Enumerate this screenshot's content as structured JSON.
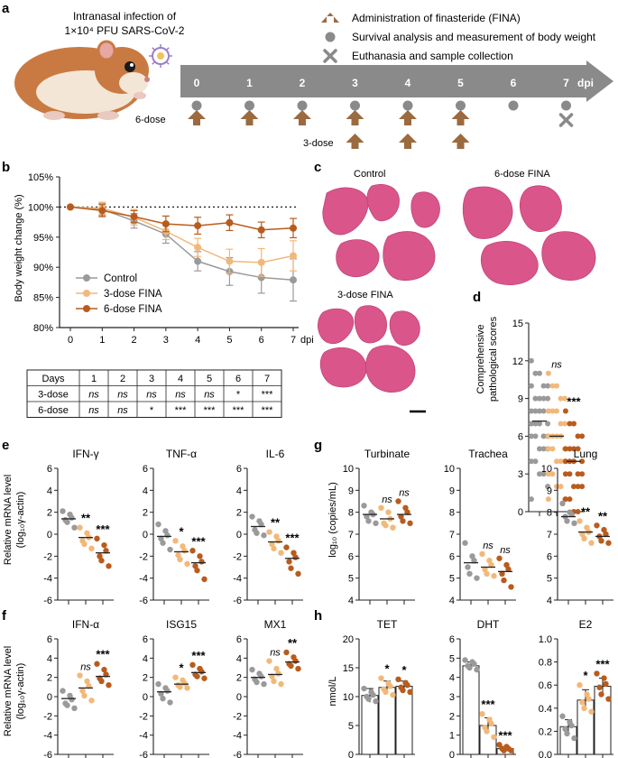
{
  "colors": {
    "control": "#9a9a9a",
    "dose3": "#f2b87a",
    "dose6": "#b85c1e",
    "arrow": "#9b6a3e",
    "timeline": "#8a8a8a",
    "tissue": "#d9558a"
  },
  "panel_a": {
    "letter": "a",
    "infection_line1": "Intranasal infection of",
    "infection_line2": "1×10⁴ PFU SARS-CoV-2",
    "legend": [
      "Administration of finasteride (FINA)",
      "Survival analysis and measurement of body weight",
      "Euthanasia and sample collection"
    ],
    "days": [
      "0",
      "1",
      "2",
      "3",
      "4",
      "5",
      "6",
      "7"
    ],
    "dpi": "dpi",
    "six_dose": "6-dose",
    "three_dose": "3-dose"
  },
  "panel_b": {
    "letter": "b",
    "ylabel": "Body weight change (%)",
    "xunit": "dpi",
    "yticks": [
      "105%",
      "100%",
      "95%",
      "90%",
      "85%",
      "80%"
    ],
    "legend": [
      "Control",
      "3-dose FINA",
      "6-dose FINA"
    ],
    "table": {
      "header": [
        "Days",
        "1",
        "2",
        "3",
        "4",
        "5",
        "6",
        "7"
      ],
      "rows": [
        [
          "3-dose",
          "ns",
          "ns",
          "ns",
          "ns",
          "ns",
          "*",
          "***"
        ],
        [
          "6-dose",
          "ns",
          "ns",
          "*",
          "***",
          "***",
          "***",
          "***"
        ]
      ]
    }
  },
  "panel_c": {
    "letter": "c",
    "labels": [
      "Control",
      "6-dose FINA",
      "3-dose FINA"
    ]
  },
  "panel_d": {
    "letter": "d",
    "ylabel1": "Comprehensive",
    "ylabel2": "pathological scores",
    "sig": [
      "ns",
      "***"
    ]
  },
  "panel_e": {
    "letter": "e",
    "ylabel1": "Relative mRNA level",
    "ylabel2": "(log₁₀γ-actin)"
  },
  "panel_f": {
    "letter": "f",
    "ylabel1": "Relative mRNA level",
    "ylabel2": "(log₁₀γ-actin)"
  },
  "panel_g": {
    "letter": "g",
    "ylabel": "log₁₀ (copies/mL)"
  },
  "panel_h": {
    "letter": "h",
    "ylabel": "nmol/L"
  },
  "chart_data": [
    {
      "id": "b",
      "type": "line",
      "title": "Body weight change",
      "xlabel": "dpi",
      "ylabel": "Body weight change (%)",
      "x": [
        0,
        1,
        2,
        3,
        4,
        5,
        6,
        7
      ],
      "ylim": [
        80,
        105
      ],
      "reference_line": 100,
      "series": [
        {
          "name": "Control",
          "values": [
            100,
            99.6,
            97.7,
            95.5,
            91.0,
            89.3,
            88.3,
            87.9
          ],
          "errors": [
            0,
            1,
            1.2,
            1.5,
            1.6,
            2.3,
            2.6,
            3.5
          ]
        },
        {
          "name": "3-dose FINA",
          "values": [
            100,
            99.8,
            98.3,
            96.0,
            93.3,
            91.0,
            90.8,
            91.9
          ],
          "errors": [
            0,
            1,
            1.3,
            1.4,
            1.5,
            2.0,
            2.3,
            2.5
          ]
        },
        {
          "name": "6-dose FINA",
          "values": [
            100,
            99.4,
            98.4,
            97.2,
            96.9,
            97.4,
            96.2,
            96.5
          ],
          "errors": [
            0,
            1,
            1.0,
            1.3,
            1.4,
            1.3,
            1.3,
            1.6
          ]
        }
      ]
    },
    {
      "id": "d",
      "type": "scatter",
      "ylabel": "Comprehensive pathological scores",
      "ylim": [
        0,
        15
      ],
      "yticks": [
        0,
        3,
        6,
        9,
        12,
        15
      ],
      "groups": [
        {
          "name": "Control",
          "mean": 7.2,
          "values": [
            12,
            11,
            11,
            10,
            10,
            10,
            9,
            9,
            9,
            9,
            8,
            8,
            8,
            8,
            7,
            7,
            7,
            7,
            6,
            6,
            6,
            6,
            5,
            5,
            5,
            4,
            4,
            3,
            3,
            2,
            1
          ]
        },
        {
          "name": "3-dose FINA",
          "mean": 6.0,
          "sig": "ns",
          "values": [
            11,
            10,
            10,
            9,
            9,
            8,
            8,
            8,
            7,
            7,
            6,
            6,
            6,
            6,
            5,
            5,
            5,
            4,
            4,
            4,
            3,
            3,
            2,
            2,
            1,
            1
          ]
        },
        {
          "name": "6-dose FINA",
          "mean": 4.0,
          "sig": "***",
          "values": [
            8,
            7,
            7,
            6,
            6,
            5,
            5,
            5,
            5,
            4,
            4,
            4,
            4,
            3,
            3,
            3,
            3,
            2,
            2,
            2,
            1,
            1,
            0,
            0
          ]
        }
      ]
    },
    {
      "id": "e1",
      "type": "scatter",
      "title": "IFN-γ",
      "ylim": [
        -6,
        6
      ],
      "yticks": [
        -6,
        -4,
        -2,
        0,
        2,
        4,
        6
      ],
      "groups": [
        {
          "name": "Control",
          "mean": 1.4,
          "values": [
            2.1,
            1.8,
            1.5,
            1.3,
            1.1,
            0.6
          ]
        },
        {
          "name": "3-dose FINA",
          "mean": -0.3,
          "sig": "**",
          "values": [
            0.6,
            0.1,
            -0.3,
            -0.6,
            -0.9,
            -1.3
          ]
        },
        {
          "name": "6-dose FINA",
          "mean": -1.7,
          "sig": "***",
          "values": [
            -0.4,
            -1.0,
            -1.5,
            -2.0,
            -2.4,
            -2.9
          ]
        }
      ]
    },
    {
      "id": "e2",
      "type": "scatter",
      "title": "TNF-α",
      "ylim": [
        -6,
        6
      ],
      "yticks": [
        -6,
        -4,
        -2,
        0,
        2,
        4,
        6
      ],
      "groups": [
        {
          "name": "Control",
          "mean": -0.2,
          "values": [
            0.9,
            0.3,
            -0.1,
            -0.4,
            -0.8,
            -1.4
          ]
        },
        {
          "name": "3-dose FINA",
          "mean": -1.6,
          "sig": "*",
          "values": [
            -0.6,
            -1.1,
            -1.5,
            -1.9,
            -2.3,
            -2.7
          ]
        },
        {
          "name": "6-dose FINA",
          "mean": -2.6,
          "sig": "***",
          "values": [
            -1.5,
            -2.0,
            -2.5,
            -2.9,
            -3.3,
            -4.1
          ]
        }
      ]
    },
    {
      "id": "e3",
      "type": "scatter",
      "title": "IL-6",
      "ylim": [
        -6,
        6
      ],
      "yticks": [
        -6,
        -4,
        -2,
        0,
        2,
        4,
        6
      ],
      "groups": [
        {
          "name": "Control",
          "mean": 0.7,
          "values": [
            1.6,
            1.2,
            0.9,
            0.4,
            0.1,
            -0.1
          ]
        },
        {
          "name": "3-dose FINA",
          "mean": -0.7,
          "sig": "**",
          "values": [
            0.2,
            -0.2,
            -0.6,
            -0.9,
            -1.3,
            -1.7
          ]
        },
        {
          "name": "6-dose FINA",
          "mean": -2.2,
          "sig": "***",
          "values": [
            -1.2,
            -1.7,
            -2.1,
            -2.5,
            -3.1,
            -3.6
          ]
        }
      ]
    },
    {
      "id": "f1",
      "type": "scatter",
      "title": "IFN-α",
      "ylim": [
        -6,
        6
      ],
      "yticks": [
        -6,
        -4,
        -2,
        0,
        2,
        4,
        6
      ],
      "groups": [
        {
          "name": "Control",
          "mean": -0.2,
          "values": [
            0.6,
            0.1,
            -0.3,
            -0.7,
            -0.9,
            -1.2
          ]
        },
        {
          "name": "3-dose FINA",
          "mean": 0.9,
          "sig": "ns",
          "values": [
            2.2,
            1.6,
            1.1,
            0.6,
            0.1,
            -0.4
          ]
        },
        {
          "name": "6-dose FINA",
          "mean": 2.1,
          "sig": "***",
          "values": [
            3.4,
            2.8,
            2.3,
            1.9,
            1.6,
            1.2
          ]
        }
      ]
    },
    {
      "id": "f2",
      "type": "scatter",
      "title": "ISG15",
      "ylim": [
        -6,
        6
      ],
      "yticks": [
        -6,
        -4,
        -2,
        0,
        2,
        4,
        6
      ],
      "groups": [
        {
          "name": "Control",
          "mean": 0.5,
          "values": [
            1.3,
            0.9,
            0.6,
            0.3,
            -0.2,
            -0.6
          ]
        },
        {
          "name": "3-dose FINA",
          "mean": 1.3,
          "sig": "*",
          "values": [
            2.0,
            1.7,
            1.4,
            1.2,
            1.0,
            0.9
          ]
        },
        {
          "name": "6-dose FINA",
          "mean": 2.5,
          "sig": "***",
          "values": [
            3.3,
            2.9,
            2.6,
            2.3,
            2.1,
            1.9
          ]
        }
      ]
    },
    {
      "id": "f3",
      "type": "scatter",
      "title": "MX1",
      "ylim": [
        -6,
        6
      ],
      "yticks": [
        -6,
        -4,
        -2,
        0,
        2,
        4,
        6
      ],
      "groups": [
        {
          "name": "Control",
          "mean": 2.0,
          "values": [
            2.8,
            2.4,
            2.1,
            1.8,
            1.5,
            1.3
          ]
        },
        {
          "name": "3-dose FINA",
          "mean": 2.3,
          "sig": "ns",
          "values": [
            3.7,
            2.9,
            2.4,
            2.1,
            1.6,
            1.3
          ]
        },
        {
          "name": "6-dose FINA",
          "mean": 3.6,
          "sig": "**",
          "values": [
            4.6,
            4.1,
            3.7,
            3.4,
            3.2,
            2.9
          ]
        }
      ]
    },
    {
      "id": "g1",
      "type": "scatter",
      "title": "Turbinate",
      "ylabel": "log₁₀ (copies/mL)",
      "ylim": [
        4,
        10
      ],
      "yticks": [
        4,
        5,
        6,
        7,
        8,
        9,
        10
      ],
      "groups": [
        {
          "name": "Control",
          "mean": 7.9,
          "values": [
            8.3,
            8.0,
            7.9,
            7.8,
            7.6,
            7.5
          ]
        },
        {
          "name": "3-dose FINA",
          "mean": 7.7,
          "sig": "ns",
          "values": [
            8.2,
            8.0,
            7.7,
            7.5,
            7.4,
            7.3
          ]
        },
        {
          "name": "6-dose FINA",
          "mean": 7.9,
          "sig": "ns",
          "values": [
            8.5,
            8.2,
            8.0,
            7.8,
            7.6,
            7.5
          ]
        }
      ]
    },
    {
      "id": "g2",
      "type": "scatter",
      "title": "Trachea",
      "ylim": [
        4,
        10
      ],
      "yticks": [
        4,
        5,
        6,
        7,
        8,
        9,
        10
      ],
      "groups": [
        {
          "name": "Control",
          "mean": 5.7,
          "values": [
            6.6,
            6.0,
            5.8,
            5.5,
            5.2,
            5.0
          ]
        },
        {
          "name": "3-dose FINA",
          "mean": 5.5,
          "sig": "ns",
          "values": [
            6.1,
            5.8,
            5.6,
            5.4,
            5.2,
            5.1
          ]
        },
        {
          "name": "6-dose FINA",
          "mean": 5.3,
          "sig": "ns",
          "values": [
            5.9,
            5.6,
            5.4,
            5.2,
            4.9,
            4.6
          ]
        }
      ]
    },
    {
      "id": "g3",
      "type": "scatter",
      "title": "Lung",
      "ylim": [
        4,
        10
      ],
      "yticks": [
        4,
        5,
        6,
        7,
        8,
        9,
        10
      ],
      "groups": [
        {
          "name": "Control",
          "mean": 7.8,
          "values": [
            8.4,
            8.0,
            7.9,
            7.8,
            7.6,
            7.5
          ]
        },
        {
          "name": "3-dose FINA",
          "mean": 7.1,
          "sig": "**",
          "values": [
            7.6,
            7.3,
            7.1,
            7.0,
            6.8,
            6.6
          ]
        },
        {
          "name": "6-dose FINA",
          "mean": 6.9,
          "sig": "**",
          "values": [
            7.4,
            7.2,
            7.0,
            6.9,
            6.7,
            6.6
          ]
        }
      ]
    },
    {
      "id": "h1",
      "type": "bar",
      "title": "TET",
      "ylabel": "nmol/L",
      "ylim": [
        0,
        20
      ],
      "yticks": [
        0,
        5,
        10,
        15,
        20
      ],
      "groups": [
        {
          "name": "Control",
          "mean": 10.2,
          "sd": 1.2,
          "values": [
            11.4,
            10.8,
            10.3,
            10.0,
            9.6,
            9.2
          ]
        },
        {
          "name": "3-dose FINA",
          "mean": 11.6,
          "sd": 1.1,
          "sig": "*",
          "values": [
            13.2,
            12.3,
            11.8,
            11.3,
            10.8,
            10.3
          ]
        },
        {
          "name": "6-dose FINA",
          "mean": 11.8,
          "sd": 0.9,
          "sig": "*",
          "values": [
            13.0,
            12.4,
            12.0,
            11.6,
            11.1,
            10.8
          ]
        }
      ]
    },
    {
      "id": "h2",
      "type": "bar",
      "title": "DHT",
      "ylim": [
        0,
        6
      ],
      "yticks": [
        0,
        1,
        2,
        3,
        4,
        5,
        6
      ],
      "groups": [
        {
          "name": "Control",
          "mean": 4.6,
          "sd": 0.2,
          "values": [
            4.9,
            4.8,
            4.7,
            4.6,
            4.5,
            4.4
          ]
        },
        {
          "name": "3-dose FINA",
          "mean": 1.5,
          "sd": 0.4,
          "sig": "***",
          "values": [
            2.1,
            1.8,
            1.6,
            1.4,
            1.2,
            0.9
          ]
        },
        {
          "name": "6-dose FINA",
          "mean": 0.3,
          "sd": 0.1,
          "sig": "***",
          "values": [
            0.5,
            0.4,
            0.3,
            0.3,
            0.2,
            0.2
          ]
        }
      ]
    },
    {
      "id": "h3",
      "type": "bar",
      "title": "E2",
      "ylim": [
        0,
        1.0
      ],
      "yticks": [
        0,
        0.2,
        0.4,
        0.6,
        0.8,
        1.0
      ],
      "groups": [
        {
          "name": "Control",
          "mean": 0.24,
          "sd": 0.06,
          "values": [
            0.33,
            0.28,
            0.25,
            0.22,
            0.18,
            0.14
          ]
        },
        {
          "name": "3-dose FINA",
          "mean": 0.47,
          "sd": 0.09,
          "sig": "*",
          "values": [
            0.6,
            0.52,
            0.48,
            0.45,
            0.4,
            0.37
          ]
        },
        {
          "name": "6-dose FINA",
          "mean": 0.59,
          "sd": 0.07,
          "sig": "***",
          "values": [
            0.7,
            0.66,
            0.61,
            0.58,
            0.52,
            0.48
          ]
        }
      ]
    }
  ]
}
